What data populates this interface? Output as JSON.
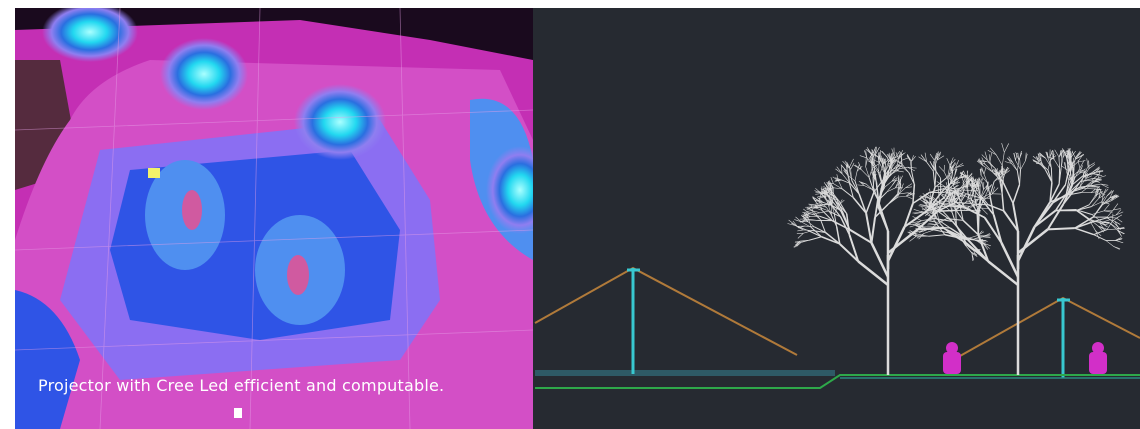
{
  "caption": "Projector with Cree Led efficient and computable."
}
